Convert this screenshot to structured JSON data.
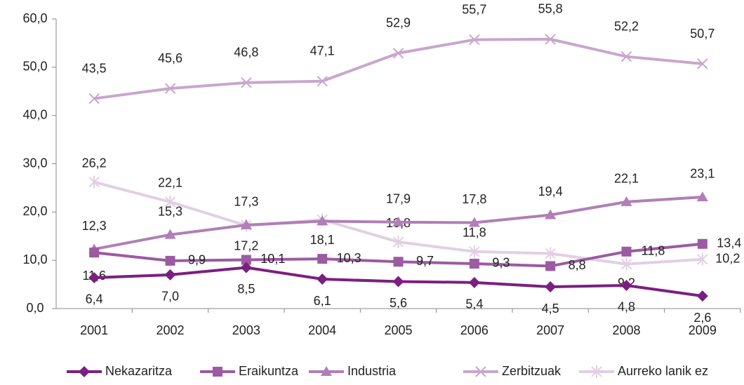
{
  "chart_data": {
    "type": "line",
    "categories": [
      "2001",
      "2002",
      "2003",
      "2004",
      "2005",
      "2006",
      "2007",
      "2008",
      "2009"
    ],
    "series": [
      {
        "name": "Nekazaritza",
        "color": "#7b1f80",
        "marker": "diamond",
        "values": [
          6.4,
          7.0,
          8.5,
          6.1,
          5.6,
          5.4,
          4.5,
          4.8,
          2.6
        ],
        "value_labels": [
          "6,4",
          "7,0",
          "8,5",
          "6,1",
          "5,6",
          "5,4",
          "4,5",
          "4,8",
          "2,6"
        ]
      },
      {
        "name": "Eraikuntza",
        "color": "#9c5aa2",
        "marker": "square",
        "values": [
          11.6,
          9.9,
          10.1,
          10.3,
          9.7,
          9.3,
          8.8,
          11.8,
          13.4
        ],
        "value_labels": [
          "11,6",
          "9,9",
          "10,1",
          "10,3",
          "9,7",
          "9,3",
          "8,8",
          "11,8",
          "13,4"
        ]
      },
      {
        "name": "Industria",
        "color": "#b07fb6",
        "marker": "triangle",
        "values": [
          12.3,
          15.3,
          17.3,
          18.1,
          17.9,
          17.8,
          19.4,
          22.1,
          23.1
        ],
        "value_labels": [
          "12,3",
          "15,3",
          "17,3",
          "18,1",
          "17,9",
          "17,8",
          "19,4",
          "22,1",
          "23,1"
        ]
      },
      {
        "name": "Zerbitzuak",
        "color": "#c9a6cd",
        "marker": "x",
        "values": [
          43.5,
          45.6,
          46.8,
          47.1,
          52.9,
          55.7,
          55.8,
          52.2,
          50.7
        ],
        "value_labels": [
          "43,5",
          "45,6",
          "46,8",
          "47,1",
          "52,9",
          "55,7",
          "55,8",
          "52,2",
          "50,7"
        ]
      },
      {
        "name": "Aurreko lanik ez",
        "color": "#e2cfe4",
        "marker": "star",
        "values": [
          26.2,
          22.1,
          17.2,
          18.4,
          13.8,
          11.8,
          11.4,
          9.2,
          10.2
        ],
        "value_labels": [
          "26,2",
          "22,1",
          "17,2",
          null,
          "13,8",
          "11,8",
          null,
          "9,2",
          "10,2"
        ]
      }
    ],
    "ylim": [
      0,
      60
    ],
    "yticks": [
      {
        "value": 0,
        "label": "0,0"
      },
      {
        "value": 10,
        "label": "10,0"
      },
      {
        "value": 20,
        "label": "20,0"
      },
      {
        "value": 30,
        "label": "30,0"
      },
      {
        "value": 40,
        "label": "40,0"
      },
      {
        "value": 50,
        "label": "50,0"
      },
      {
        "value": 60,
        "label": "60,0"
      }
    ],
    "legend": "bottom"
  }
}
